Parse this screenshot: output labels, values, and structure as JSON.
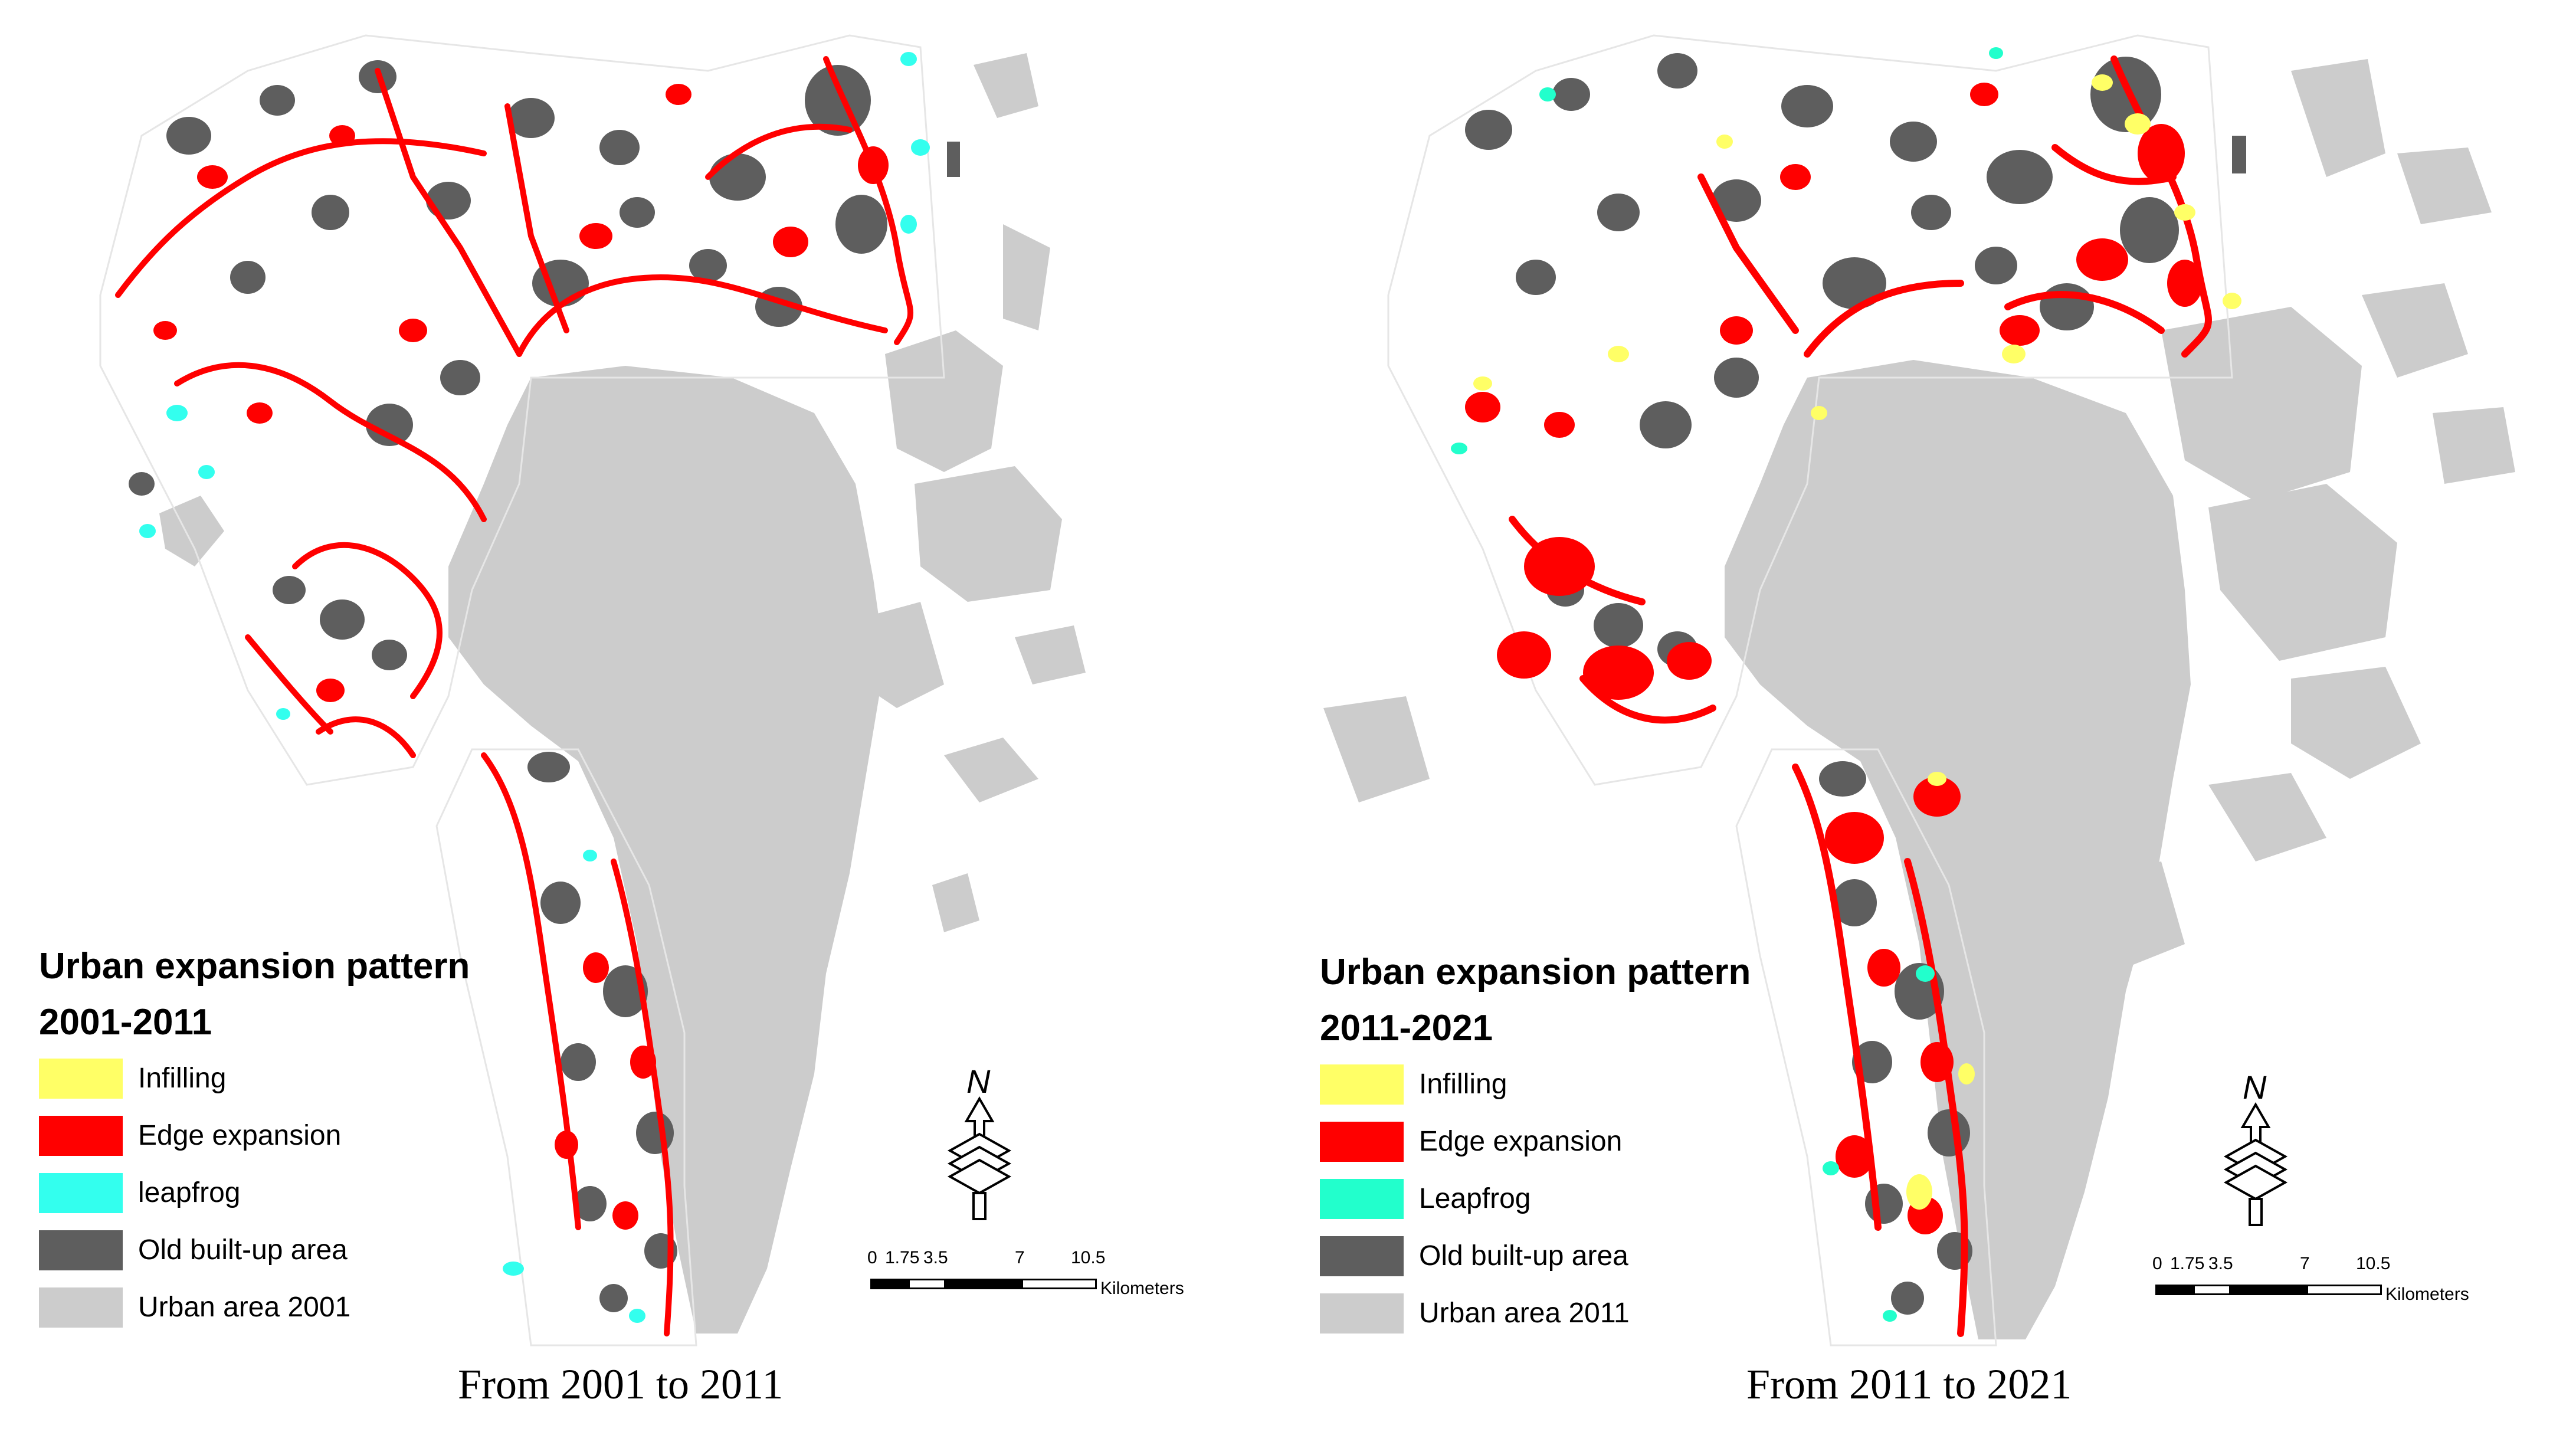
{
  "colors": {
    "infilling": "#ffff66",
    "edge_expansion": "#ff0000",
    "leapfrog_left": "#33ffee",
    "leapfrog_right": "#22ffcc",
    "old_built_up": "#5e5e5e",
    "urban_area": "#cccccc"
  },
  "panels": [
    {
      "legend_title": "Urban expansion pattern",
      "legend_period": "2001-2011",
      "legend_items": [
        {
          "label": "Infilling",
          "color": "#ffff66"
        },
        {
          "label": "Edge expansion",
          "color": "#ff0000"
        },
        {
          "label": "leapfrog",
          "color": "#33ffee"
        },
        {
          "label": "Old built-up area",
          "color": "#5e5e5e"
        },
        {
          "label": "Urban area 2001",
          "color": "#cccccc"
        }
      ],
      "north_label": "N",
      "scale": {
        "ticks": [
          "0",
          "1.75",
          "3.5",
          "7",
          "10.5"
        ],
        "unit": "Kilometers"
      },
      "caption": "From 2001 to 2011"
    },
    {
      "legend_title": "Urban expansion pattern",
      "legend_period": "2011-2021",
      "legend_items": [
        {
          "label": "Infilling",
          "color": "#ffff66"
        },
        {
          "label": "Edge expansion",
          "color": "#ff0000"
        },
        {
          "label": "Leapfrog",
          "color": "#22ffcc"
        },
        {
          "label": "Old built-up area",
          "color": "#5e5e5e"
        },
        {
          "label": "Urban area 2011",
          "color": "#cccccc"
        }
      ],
      "north_label": "N",
      "scale": {
        "ticks": [
          "0",
          "1.75",
          "3.5",
          "7",
          "10.5"
        ],
        "unit": "Kilometers"
      },
      "caption": "From 2011 to 2021"
    }
  ]
}
